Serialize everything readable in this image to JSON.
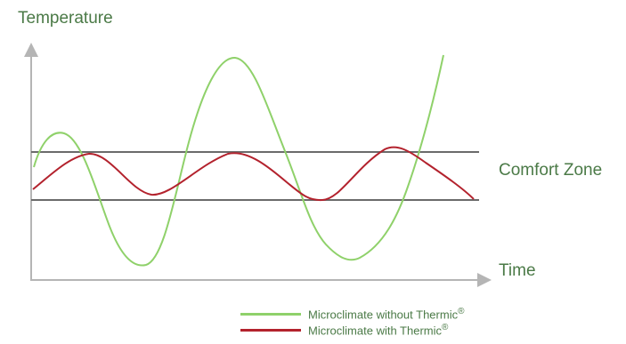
{
  "labels": {
    "y_axis": "Temperature",
    "x_axis": "Time",
    "zone": "Comfort Zone"
  },
  "legend": [
    {
      "text": "Microclimate without Thermic",
      "mark": "®",
      "color": "#8fd16a"
    },
    {
      "text": "Microclimate with Thermic",
      "mark": "®",
      "color": "#b3222d"
    }
  ],
  "colors": {
    "axis": "#b5b5b5",
    "zone_line": "#6b6b6b",
    "label_text": "#4b7a47"
  }
}
